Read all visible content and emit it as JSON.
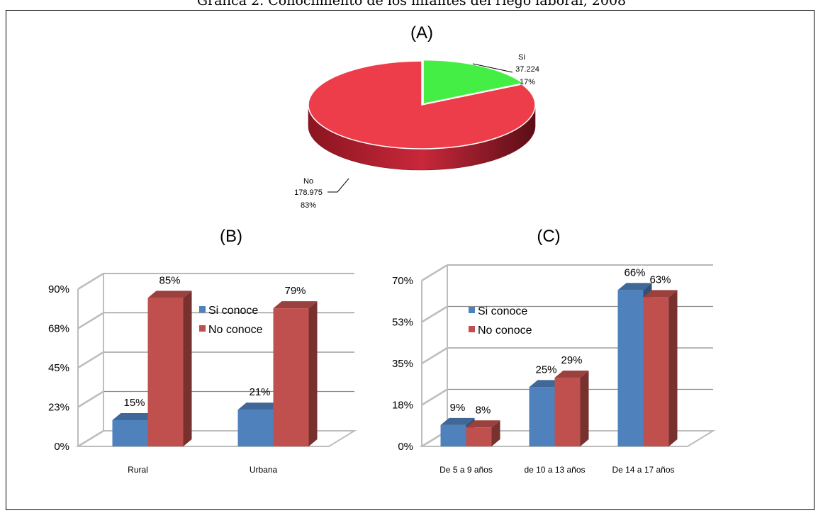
{
  "figure_title": "Gráfica 2. Conocimiento de los infantes del riego laboral, 2008",
  "colors": {
    "si": "#4f81bd",
    "no": "#c0504d",
    "pie_si": "#44ee44",
    "pie_no": "#ee3d4a"
  },
  "chart_data": [
    {
      "type": "pie",
      "panel_label": "(A)",
      "slices": [
        {
          "name": "Si",
          "value": 37224,
          "value_label": "37.224",
          "percent_label": "17%"
        },
        {
          "name": "No",
          "value": 178975,
          "value_label": "178.975",
          "percent_label": "83%"
        }
      ]
    },
    {
      "type": "bar",
      "panel_label": "(B)",
      "categories": [
        "Rural",
        "Urbana"
      ],
      "series": [
        {
          "name": "Si conoce",
          "values": [
            15,
            21
          ],
          "labels": [
            "15%",
            "21%"
          ]
        },
        {
          "name": "No conoce",
          "values": [
            85,
            79
          ],
          "labels": [
            "85%",
            "79%"
          ]
        }
      ],
      "yticks": [
        "0%",
        "23%",
        "45%",
        "68%",
        "90%"
      ],
      "ylim": [
        0,
        90
      ],
      "grid": true,
      "legend": "inside-top-center"
    },
    {
      "type": "bar",
      "panel_label": "(C)",
      "categories": [
        "De 5 a 9 años",
        "de 10 a 13 años",
        "De 14 a 17 años"
      ],
      "series": [
        {
          "name": "Si conoce",
          "values": [
            9,
            25,
            66
          ],
          "labels": [
            "9%",
            "25%",
            "66%"
          ]
        },
        {
          "name": "No conoce",
          "values": [
            8,
            29,
            63
          ],
          "labels": [
            "8%",
            "29%",
            "63%"
          ]
        }
      ],
      "yticks": [
        "0%",
        "18%",
        "35%",
        "53%",
        "70%"
      ],
      "ylim": [
        0,
        70
      ],
      "grid": true,
      "legend": "inside-top-left"
    }
  ]
}
